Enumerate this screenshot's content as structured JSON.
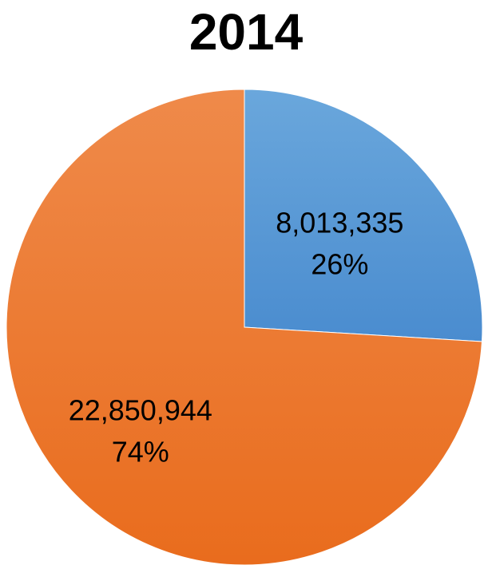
{
  "chart_data": {
    "type": "pie",
    "title": "2014",
    "slices": [
      {
        "value": 8013335,
        "value_label": "8,013,335",
        "percent": 26,
        "percent_label": "26%",
        "color": "#5B9BD5"
      },
      {
        "value": 22850944,
        "value_label": "22,850,944",
        "percent": 74,
        "percent_label": "74%",
        "color": "#ED7D31"
      }
    ],
    "legend": "none",
    "start_angle_deg": 0,
    "direction": "clockwise"
  }
}
